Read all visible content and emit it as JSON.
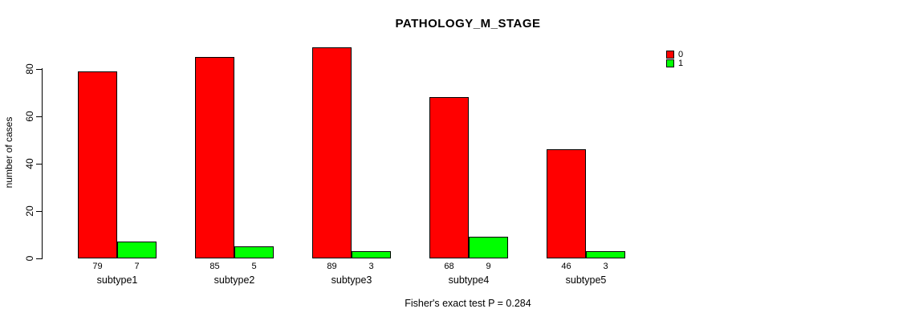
{
  "title": "PATHOLOGY_M_STAGE",
  "footer": "Fisher's exact test P = 0.284",
  "y_axis": {
    "label": "number of cases",
    "ticks": [
      0,
      20,
      40,
      60,
      80
    ]
  },
  "legend": {
    "position": "top-right",
    "entries": [
      {
        "label": "0",
        "color": "#FF0000"
      },
      {
        "label": "1",
        "color": "#00FF00"
      }
    ]
  },
  "chart_data": {
    "type": "bar",
    "title": "PATHOLOGY_M_STAGE",
    "categories": [
      "subtype1",
      "subtype2",
      "subtype3",
      "subtype4",
      "subtype5"
    ],
    "series": [
      {
        "name": "0",
        "color": "#FF0000",
        "values": [
          79,
          85,
          89,
          68,
          46
        ]
      },
      {
        "name": "1",
        "color": "#00FF00",
        "values": [
          7,
          5,
          3,
          9,
          3
        ]
      }
    ],
    "bar_value_labels": [
      [
        79,
        7
      ],
      [
        85,
        5
      ],
      [
        89,
        3
      ],
      [
        68,
        9
      ],
      [
        46,
        3
      ]
    ],
    "xlabel": "",
    "ylabel": "number of cases",
    "ylim": [
      0,
      89
    ],
    "y_ticks": [
      0,
      20,
      40,
      60,
      80
    ],
    "grid": false,
    "legend_position": "top-right",
    "annotation": "Fisher's exact test P = 0.284"
  }
}
